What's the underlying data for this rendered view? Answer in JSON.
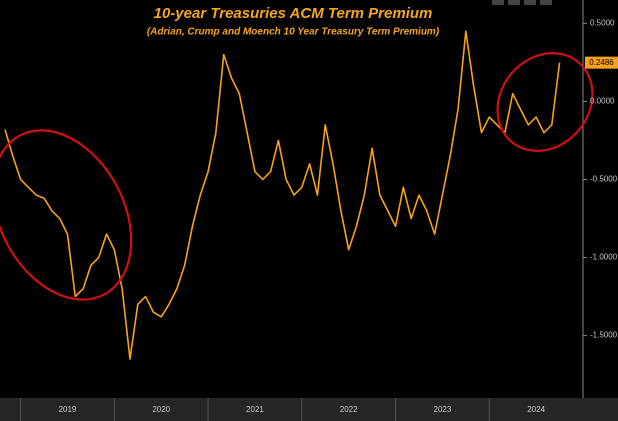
{
  "chart_data": {
    "type": "line",
    "title": "10-year Treasuries ACM Term Premium",
    "subtitle": "(Adrian, Crump and Moench 10 Year Treasury Term Premium)",
    "x": [
      2018.833,
      2018.917,
      2019.0,
      2019.083,
      2019.167,
      2019.25,
      2019.333,
      2019.417,
      2019.5,
      2019.583,
      2019.667,
      2019.75,
      2019.833,
      2019.917,
      2020.0,
      2020.083,
      2020.167,
      2020.25,
      2020.333,
      2020.417,
      2020.5,
      2020.583,
      2020.667,
      2020.75,
      2020.833,
      2020.917,
      2021.0,
      2021.083,
      2021.167,
      2021.25,
      2021.333,
      2021.417,
      2021.5,
      2021.583,
      2021.667,
      2021.75,
      2021.833,
      2021.917,
      2022.0,
      2022.083,
      2022.167,
      2022.25,
      2022.333,
      2022.417,
      2022.5,
      2022.583,
      2022.667,
      2022.75,
      2022.833,
      2022.917,
      2023.0,
      2023.083,
      2023.167,
      2023.25,
      2023.333,
      2023.417,
      2023.5,
      2023.583,
      2023.667,
      2023.75,
      2023.833,
      2023.917,
      2024.0,
      2024.083,
      2024.167,
      2024.25,
      2024.333,
      2024.417,
      2024.5,
      2024.583,
      2024.667,
      2024.75
    ],
    "series": [
      {
        "name": "ACM Term Premium",
        "color": "#f7a21b",
        "values": [
          -0.18,
          -0.35,
          -0.5,
          -0.55,
          -0.6,
          -0.62,
          -0.7,
          -0.75,
          -0.85,
          -1.25,
          -1.2,
          -1.05,
          -1.0,
          -0.85,
          -0.95,
          -1.2,
          -1.65,
          -1.3,
          -1.25,
          -1.35,
          -1.38,
          -1.3,
          -1.2,
          -1.05,
          -0.8,
          -0.6,
          -0.45,
          -0.2,
          0.3,
          0.15,
          0.05,
          -0.2,
          -0.45,
          -0.5,
          -0.45,
          -0.25,
          -0.5,
          -0.6,
          -0.55,
          -0.4,
          -0.6,
          -0.15,
          -0.4,
          -0.7,
          -0.95,
          -0.8,
          -0.6,
          -0.3,
          -0.6,
          -0.7,
          -0.8,
          -0.55,
          -0.75,
          -0.6,
          -0.7,
          -0.85,
          -0.6,
          -0.35,
          -0.05,
          0.45,
          0.1,
          -0.2,
          -0.1,
          -0.15,
          -0.2,
          0.05,
          -0.05,
          -0.15,
          -0.1,
          -0.2,
          -0.15,
          0.2486
        ]
      }
    ],
    "xlim": [
      2018.78,
      2025.0
    ],
    "xticks": [
      {
        "value": 2019.5,
        "label": "2019"
      },
      {
        "value": 2020.5,
        "label": "2020"
      },
      {
        "value": 2021.5,
        "label": "2021"
      },
      {
        "value": 2022.5,
        "label": "2022"
      },
      {
        "value": 2023.5,
        "label": "2023"
      },
      {
        "value": 2024.5,
        "label": "2024"
      }
    ],
    "ylim": [
      -1.9,
      0.65
    ],
    "yticks": [
      {
        "value": 0.5,
        "label": "0.5000"
      },
      {
        "value": 0,
        "label": "0.0000"
      },
      {
        "value": -0.5,
        "label": "-0.5000"
      },
      {
        "value": -1,
        "label": "-1.0000"
      },
      {
        "value": -1.5,
        "label": "-1.5000"
      }
    ],
    "grid": false
  }
}
